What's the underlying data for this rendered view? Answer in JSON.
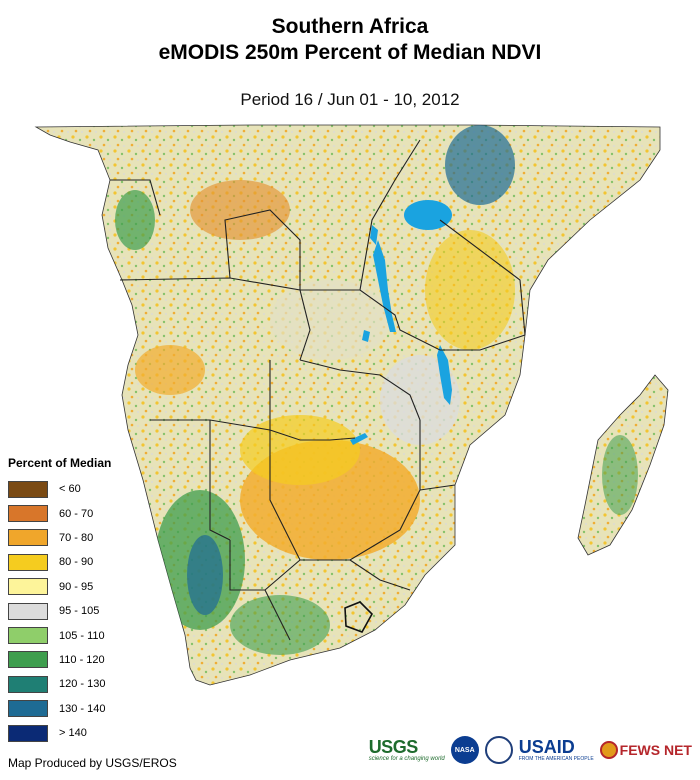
{
  "header": {
    "title_line1": "Southern Africa",
    "title_line2": "eMODIS 250m Percent of Median NDVI",
    "period": "Period 16 / Jun 01 - 10, 2012"
  },
  "map": {
    "region": "Southern Africa",
    "colors": {
      "water": "#1aa3e0",
      "boundary": "#222222",
      "background": "#ffffff"
    }
  },
  "legend": {
    "title": "Percent of Median",
    "items": [
      {
        "label": "< 60",
        "color": "#7a4a13"
      },
      {
        "label": "60 - 70",
        "color": "#d8762a"
      },
      {
        "label": "70 - 80",
        "color": "#f0a62b"
      },
      {
        "label": "80 - 90",
        "color": "#f5cc1f"
      },
      {
        "label": "90 - 95",
        "color": "#fdf49a"
      },
      {
        "label": "95 - 105",
        "color": "#dcdcdc"
      },
      {
        "label": "105 - 110",
        "color": "#8fce6a"
      },
      {
        "label": "110 - 120",
        "color": "#3f9e4e"
      },
      {
        "label": "120 - 130",
        "color": "#1f7f74"
      },
      {
        "label": "130 - 140",
        "color": "#1e6b94"
      },
      {
        "label": "> 140",
        "color": "#0b2a75"
      }
    ]
  },
  "footer": {
    "credit": "Map Produced by USGS/EROS",
    "logos": {
      "usgs": "USGS",
      "usgs_tagline": "science for a changing world",
      "nasa": "NASA",
      "usaid": "USAID",
      "usaid_tagline": "FROM THE AMERICAN PEOPLE",
      "fews": "FEWS NET"
    }
  }
}
